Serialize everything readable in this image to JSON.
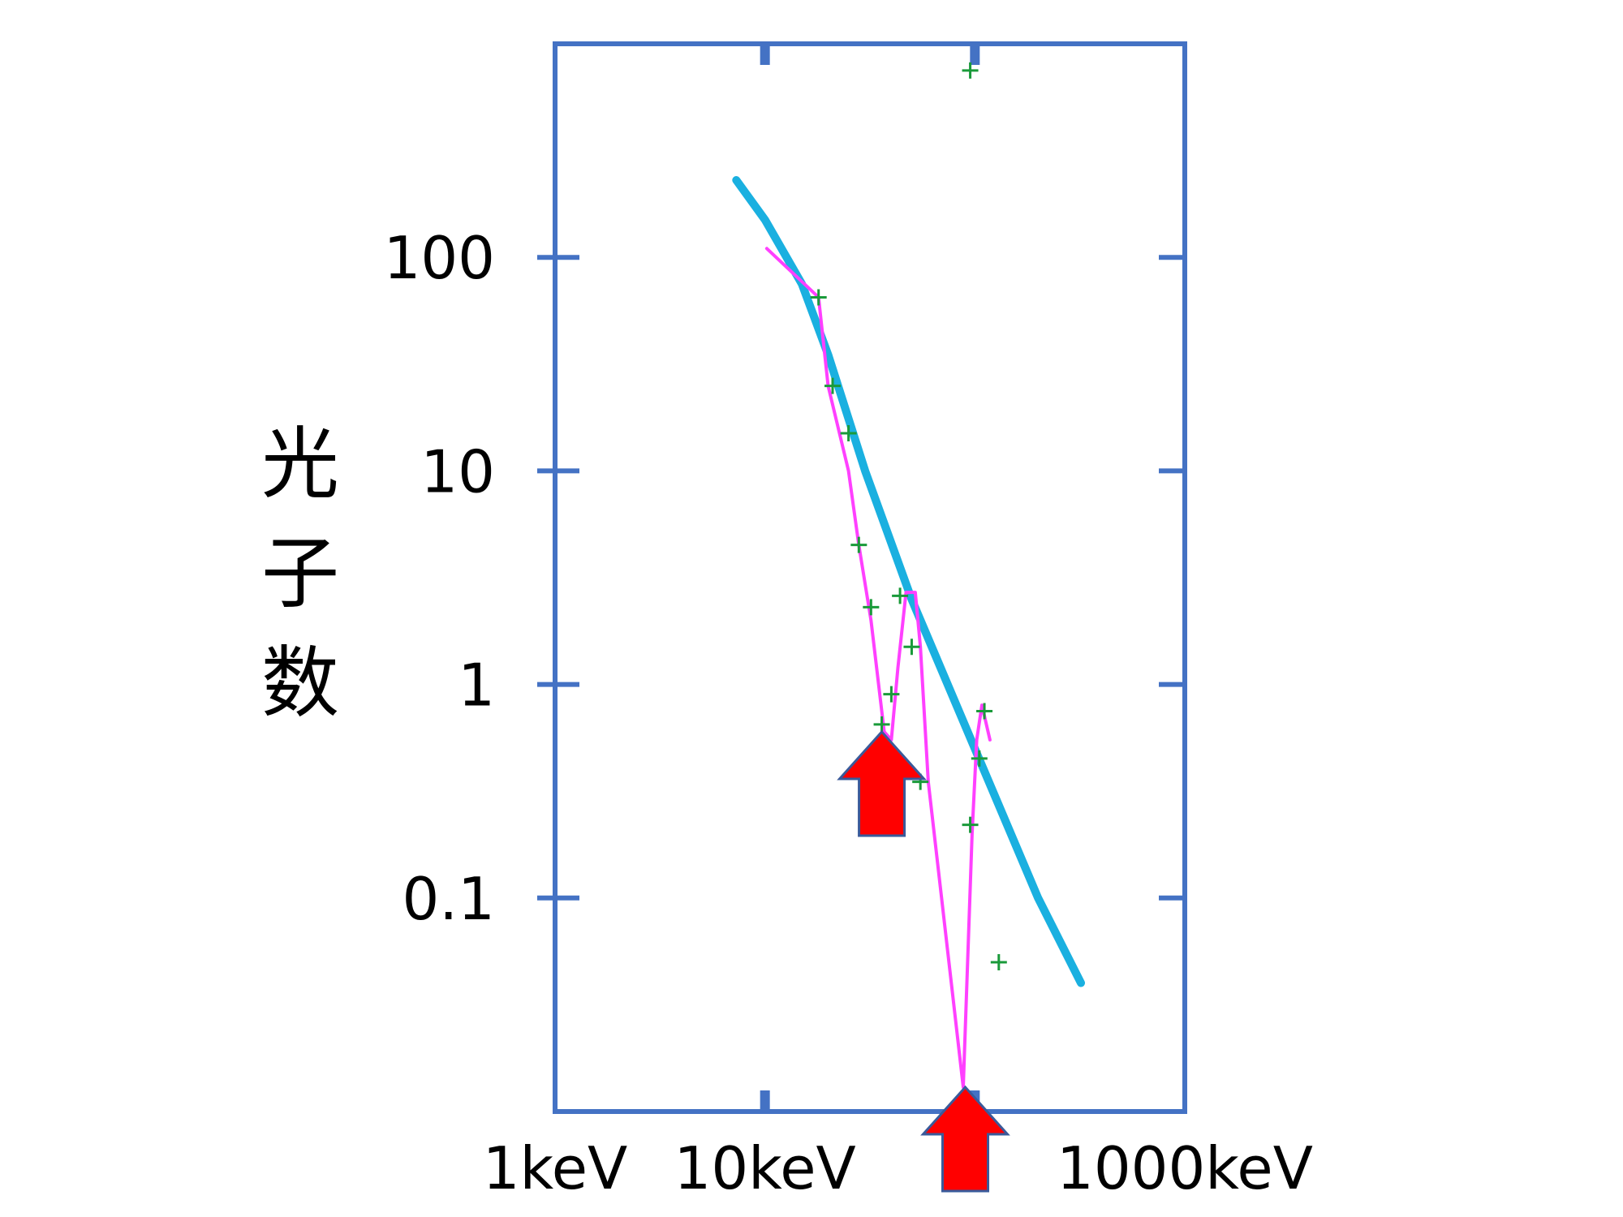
{
  "chart_data": {
    "type": "line",
    "ylabel": "光子数",
    "xscale": "log",
    "yscale": "log",
    "xlim": [
      1,
      1000
    ],
    "ylim": [
      0.01,
      1000
    ],
    "x_tick_labels": [
      {
        "value": 1,
        "label": "1keV"
      },
      {
        "value": 10,
        "label": "10keV"
      },
      {
        "value": 1000,
        "label": "1000keV"
      }
    ],
    "y_tick_labels": [
      {
        "value": 100,
        "label": "100"
      },
      {
        "value": 10,
        "label": "10"
      },
      {
        "value": 1,
        "label": "1"
      },
      {
        "value": 0.1,
        "label": "0.1"
      }
    ],
    "series": [
      {
        "style": "thick-line",
        "color": "#1ab0e0",
        "points": [
          [
            7.3,
            230
          ],
          [
            10,
            150
          ],
          [
            15,
            75
          ],
          [
            20,
            35
          ],
          [
            30,
            10
          ],
          [
            50,
            2.5
          ],
          [
            100,
            0.5
          ],
          [
            200,
            0.1
          ],
          [
            320,
            0.04
          ]
        ]
      },
      {
        "style": "thin-line",
        "color": "#ff40ff",
        "points": [
          [
            10.2,
            110
          ],
          [
            18,
            65
          ],
          [
            20,
            25
          ],
          [
            25,
            10
          ],
          [
            28,
            4.5
          ],
          [
            32,
            2
          ],
          [
            37,
            0.6
          ],
          [
            40,
            0.55
          ],
          [
            43,
            1.2
          ],
          [
            47,
            2.7
          ],
          [
            52,
            2.7
          ],
          [
            55,
            1.5
          ],
          [
            60,
            0.35
          ],
          [
            88,
            0.013
          ],
          [
            97,
            0.2
          ],
          [
            102,
            0.55
          ],
          [
            108,
            0.8
          ],
          [
            118,
            0.55
          ]
        ]
      },
      {
        "style": "markers",
        "color": "#1a9a3a",
        "points": [
          [
            18,
            65
          ],
          [
            21,
            25
          ],
          [
            25,
            15
          ],
          [
            28,
            4.5
          ],
          [
            32,
            2.3
          ],
          [
            36,
            0.65
          ],
          [
            40,
            0.9
          ],
          [
            44,
            2.6
          ],
          [
            50,
            1.5
          ],
          [
            55,
            0.35
          ],
          [
            95,
            750
          ],
          [
            95,
            0.22
          ],
          [
            105,
            0.45
          ],
          [
            111,
            0.75
          ],
          [
            130,
            0.05
          ]
        ]
      }
    ],
    "annotations": [
      {
        "type": "arrow-up",
        "color": "#ff0000",
        "x": 36,
        "y": 0.6
      },
      {
        "type": "arrow-up",
        "color": "#ff0000",
        "x": 90,
        "y": 0.013
      }
    ]
  }
}
